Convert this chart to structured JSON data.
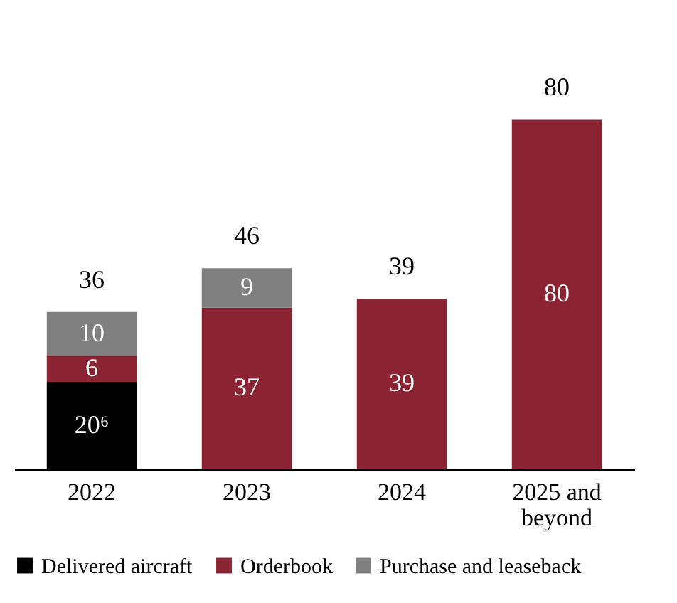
{
  "chart_data": {
    "type": "bar",
    "stacked": true,
    "categories": [
      "2022",
      "2023",
      "2024",
      "2025 and beyond"
    ],
    "series": [
      {
        "name": "Delivered aircraft",
        "color": "#000000",
        "values": [
          20,
          null,
          null,
          null
        ],
        "value_labels": [
          "20⁶",
          null,
          null,
          null
        ]
      },
      {
        "name": "Orderbook",
        "color": "#8b2332",
        "values": [
          6,
          37,
          39,
          80
        ],
        "value_labels": [
          "6",
          "37",
          "39",
          "80"
        ]
      },
      {
        "name": "Purchase and leaseback",
        "color": "#808080",
        "values": [
          10,
          9,
          null,
          null
        ],
        "value_labels": [
          "10",
          "9",
          null,
          null
        ]
      }
    ],
    "totals": [
      "36",
      "46",
      "39",
      "80"
    ],
    "legend": "bottom",
    "grid": false
  }
}
